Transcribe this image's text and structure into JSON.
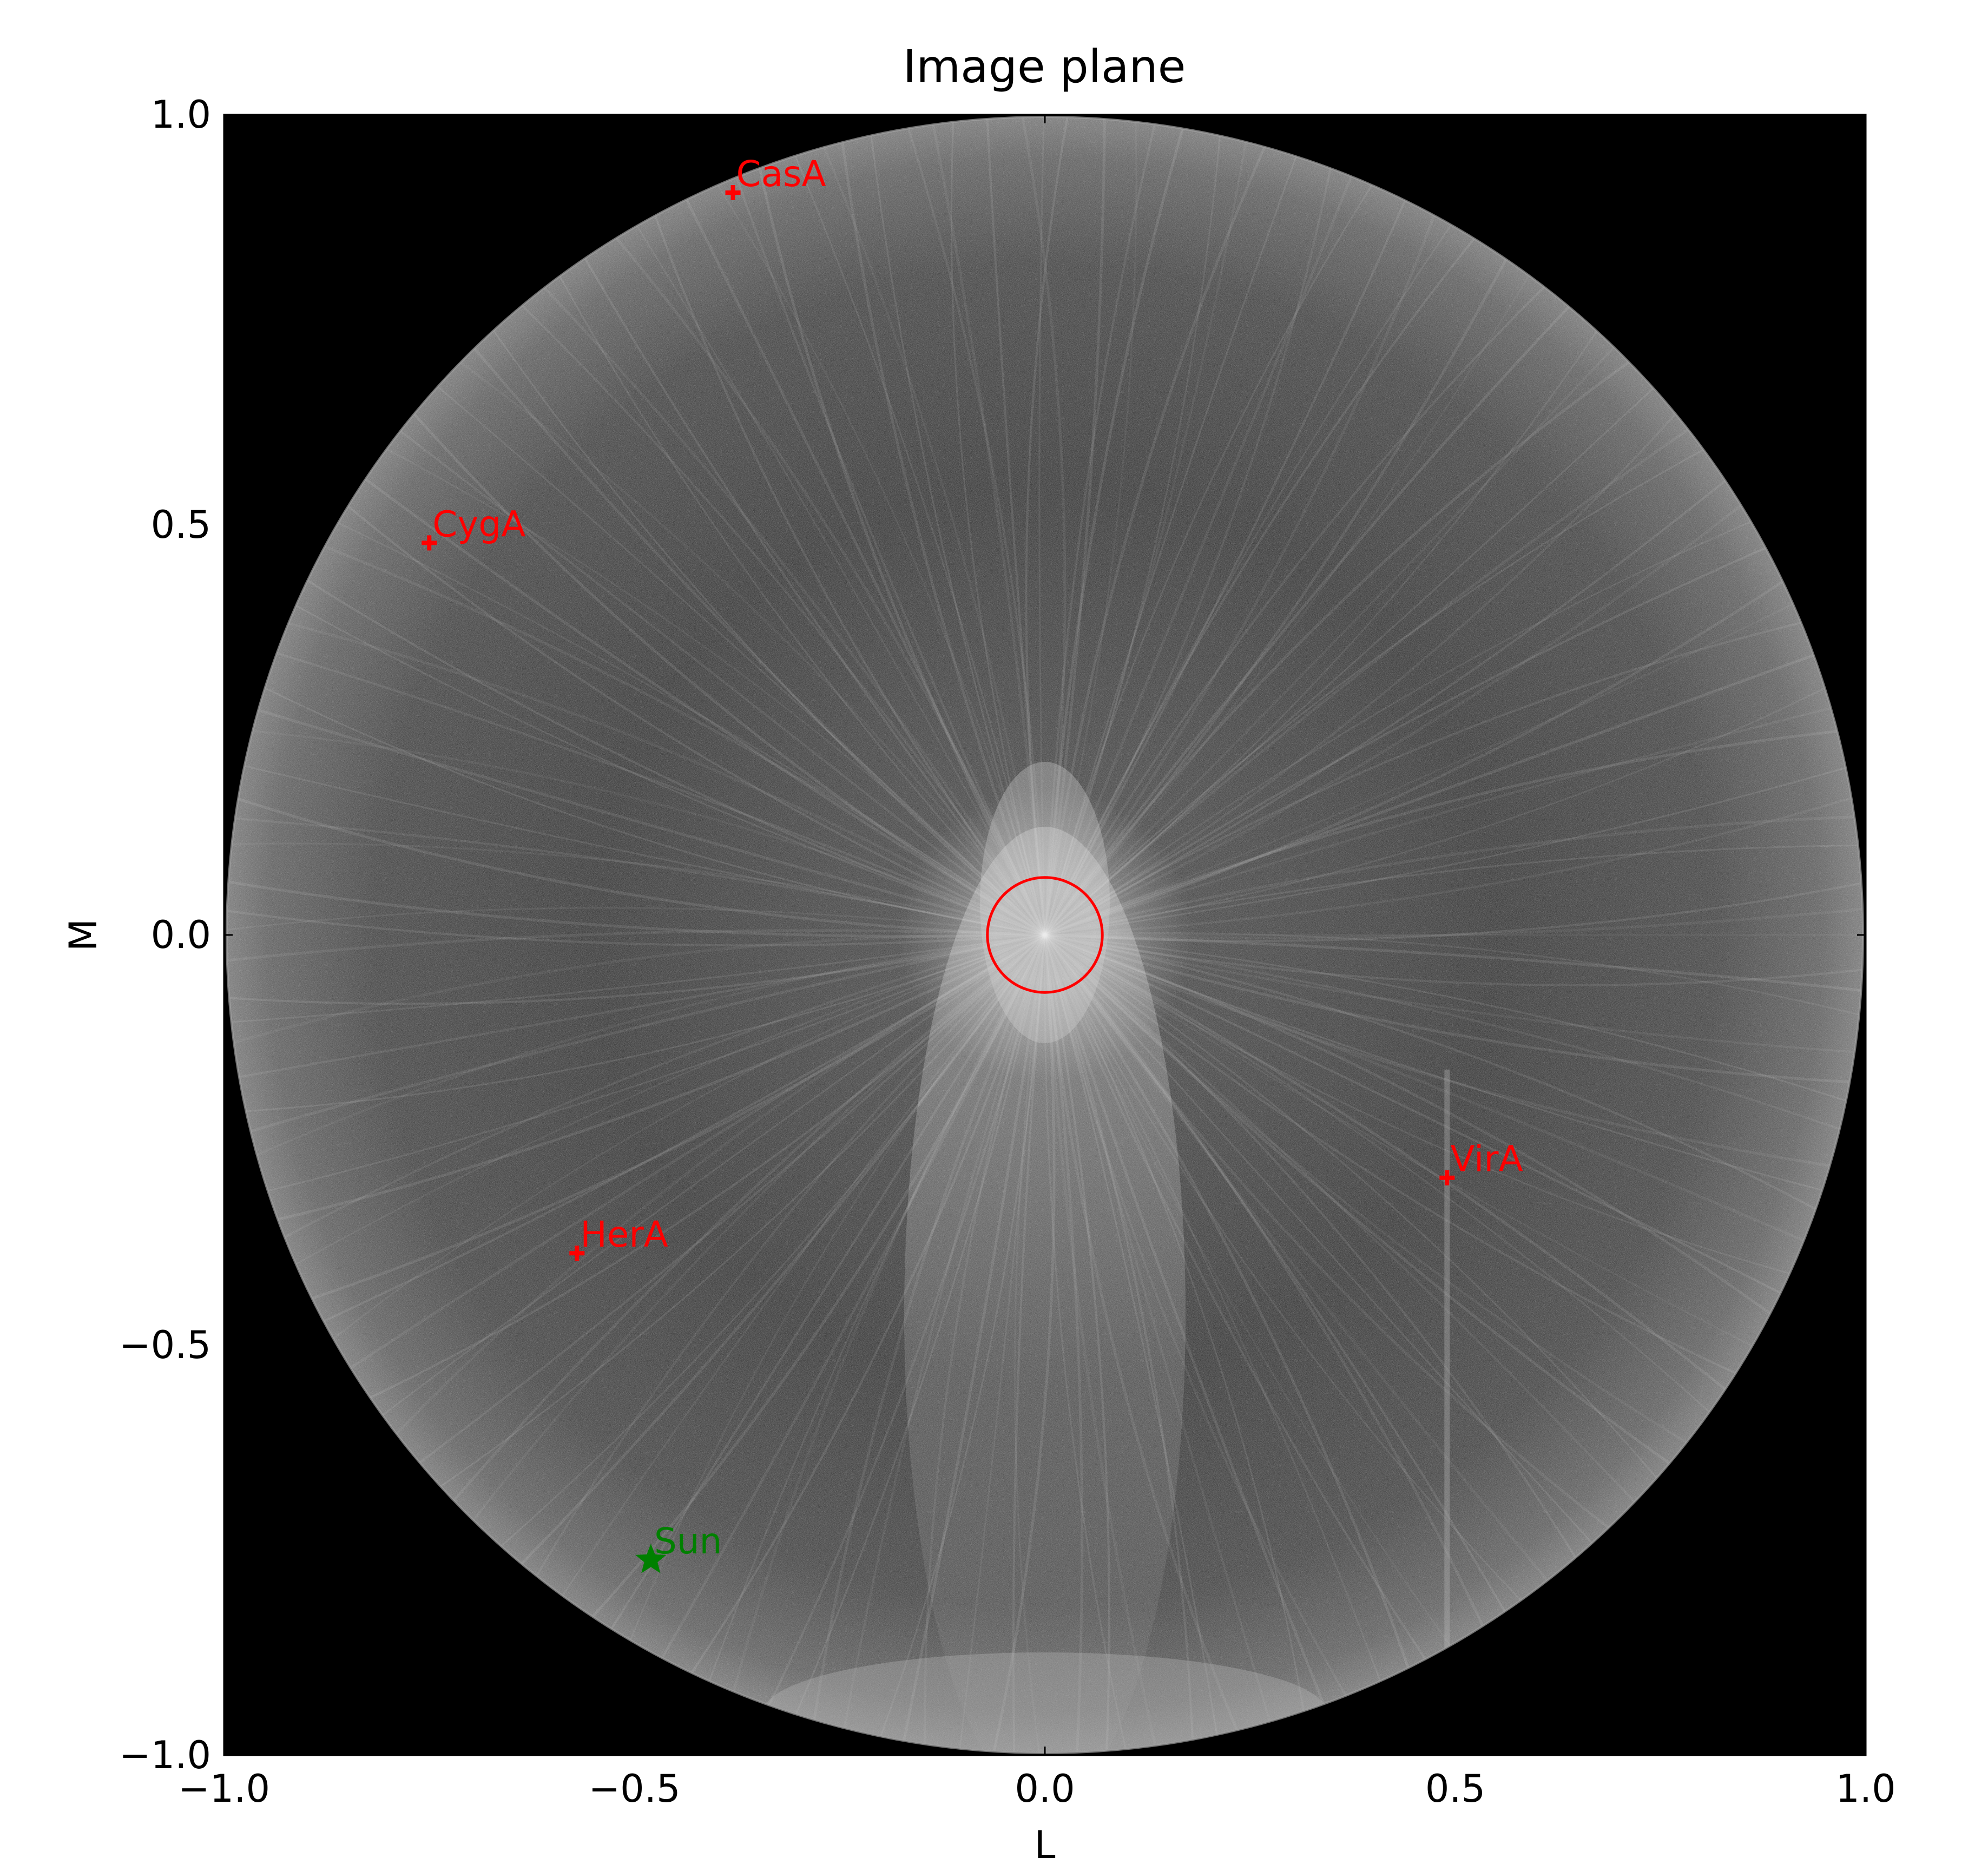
{
  "chart_data": {
    "type": "scatter",
    "title": "Image plane",
    "xlabel": "L",
    "ylabel": "M",
    "xlim": [
      -1.0,
      1.0
    ],
    "ylim": [
      -1.0,
      1.0
    ],
    "xticks": [
      -1.0,
      -0.5,
      0.0,
      0.5,
      1.0
    ],
    "xtick_labels": [
      "−1.0",
      "−0.5",
      "0.0",
      "0.5",
      "1.0"
    ],
    "yticks": [
      -1.0,
      -0.5,
      0.0,
      0.5,
      1.0
    ],
    "ytick_labels": [
      "−1.0",
      "−0.5",
      "0.0",
      "0.5",
      "1.0"
    ],
    "grid": false,
    "background": "grayscale all-sky image inside unit circle on black",
    "sources": [
      {
        "name": "CasA",
        "l": -0.38,
        "m": 0.905,
        "marker": "plus",
        "color": "#ff0000"
      },
      {
        "name": "CygA",
        "l": -0.75,
        "m": 0.478,
        "marker": "plus",
        "color": "#ff0000"
      },
      {
        "name": "VirA",
        "l": 0.49,
        "m": -0.296,
        "marker": "plus",
        "color": "#ff0000"
      },
      {
        "name": "HerA",
        "l": -0.57,
        "m": -0.388,
        "marker": "plus",
        "color": "#ff0000"
      },
      {
        "name": "Sun",
        "l": -0.48,
        "m": -0.762,
        "marker": "star",
        "color": "#008000"
      }
    ],
    "highlight_circle": {
      "center_l": 0.0,
      "center_m": 0.0,
      "radius": 0.07,
      "color": "#ff0000"
    }
  }
}
